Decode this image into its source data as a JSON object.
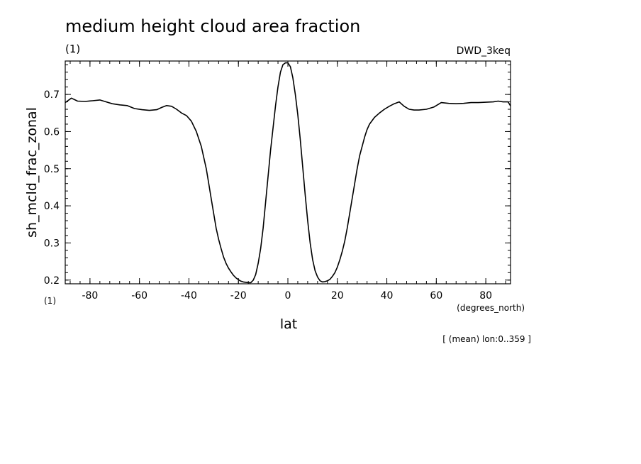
{
  "chart_data": {
    "type": "line",
    "title": "medium height cloud area fraction",
    "units_label": "(1)",
    "model_label": "DWD_3keq",
    "xlabel": "lat",
    "xunits": "(degrees_north)",
    "ylabel": "sh_mcld_frac_zonal",
    "yunits": "(1)",
    "footnote": "[ (mean) lon:0..359 ]",
    "xlim": [
      -90,
      90
    ],
    "ylim": [
      0.19,
      0.79
    ],
    "xticks": [
      -80,
      -60,
      -40,
      -20,
      0,
      20,
      40,
      60,
      80
    ],
    "xtick_labels": [
      "-80",
      "-60",
      "-40",
      "-20",
      "0",
      "20",
      "40",
      "60",
      "80"
    ],
    "yticks": [
      0.2,
      0.3,
      0.4,
      0.5,
      0.6,
      0.7
    ],
    "ytick_labels": [
      "0.2",
      "0.3",
      "0.4",
      "0.5",
      "0.6",
      "0.7"
    ],
    "grid": false,
    "series": [
      {
        "x": [
          -90,
          -87.5,
          -85,
          -82,
          -79,
          -76,
          -74,
          -71,
          -68,
          -65,
          -62,
          -59,
          -56,
          -53,
          -51,
          -49,
          -47,
          -45,
          -43,
          -41,
          -39,
          -37,
          -35,
          -33,
          -32,
          -31,
          -30,
          -29,
          -28,
          -27,
          -26,
          -25,
          -24,
          -23,
          -22,
          -21,
          -20,
          -19,
          -18,
          -17,
          -16,
          -15,
          -14,
          -13,
          -12,
          -11,
          -10,
          -9,
          -8,
          -7,
          -6,
          -5,
          -4,
          -3,
          -2,
          -1,
          0,
          1,
          2,
          3,
          4,
          5,
          6,
          7,
          8,
          9,
          10,
          11,
          12,
          13,
          14,
          15,
          16,
          17,
          18,
          19,
          20,
          21,
          22,
          23,
          24,
          25,
          26,
          27,
          28,
          29,
          30,
          31,
          32,
          33,
          35,
          37,
          39,
          41,
          43,
          45,
          47,
          49,
          51,
          53,
          56,
          59,
          62,
          65,
          68,
          71,
          74,
          77,
          80,
          83,
          85,
          87,
          89,
          90
        ],
        "y": [
          0.678,
          0.69,
          0.682,
          0.681,
          0.683,
          0.685,
          0.681,
          0.675,
          0.672,
          0.67,
          0.662,
          0.659,
          0.657,
          0.659,
          0.665,
          0.67,
          0.668,
          0.66,
          0.65,
          0.643,
          0.628,
          0.6,
          0.56,
          0.5,
          0.46,
          0.42,
          0.38,
          0.34,
          0.31,
          0.285,
          0.262,
          0.245,
          0.232,
          0.222,
          0.213,
          0.206,
          0.201,
          0.197,
          0.195,
          0.194,
          0.193,
          0.193,
          0.2,
          0.215,
          0.245,
          0.285,
          0.34,
          0.41,
          0.48,
          0.55,
          0.61,
          0.67,
          0.72,
          0.76,
          0.78,
          0.785,
          0.785,
          0.775,
          0.745,
          0.7,
          0.645,
          0.58,
          0.505,
          0.43,
          0.36,
          0.3,
          0.255,
          0.225,
          0.208,
          0.198,
          0.195,
          0.196,
          0.198,
          0.202,
          0.21,
          0.22,
          0.235,
          0.255,
          0.278,
          0.305,
          0.34,
          0.38,
          0.42,
          0.46,
          0.5,
          0.535,
          0.56,
          0.585,
          0.605,
          0.62,
          0.638,
          0.65,
          0.66,
          0.668,
          0.675,
          0.68,
          0.668,
          0.66,
          0.658,
          0.658,
          0.66,
          0.666,
          0.678,
          0.676,
          0.675,
          0.676,
          0.678,
          0.678,
          0.679,
          0.68,
          0.682,
          0.68,
          0.68,
          0.669
        ]
      }
    ]
  }
}
